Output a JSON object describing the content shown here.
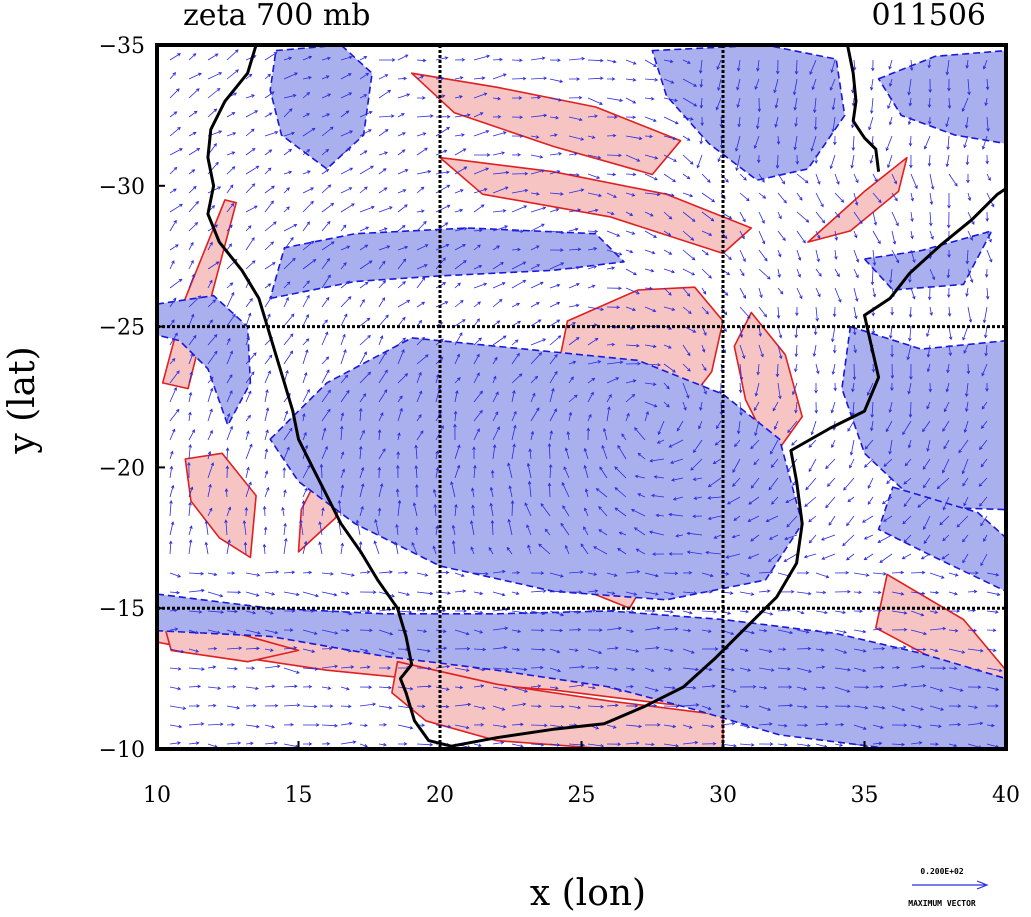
{
  "title_left": "zeta 700 mb",
  "title_right": "011506",
  "x_axis_label": "x (lon)",
  "y_axis_label": "y (lat)",
  "x_ticks": [
    "10",
    "15",
    "20",
    "25",
    "30",
    "35",
    "40"
  ],
  "y_ticks": [
    "-35",
    "-30",
    "-25",
    "-20",
    "-15",
    "-10"
  ],
  "max_vector": {
    "value_label": "0.200E+02",
    "caption": "MAXIMUM VECTOR"
  },
  "colors": {
    "positive_fill": "#f7c4c4",
    "positive_contour": "#e02020",
    "negative_fill": "#aab0ee",
    "negative_contour": "#1818dd",
    "vector": "#2a2ae0",
    "coastline": "#000000",
    "grid": "#000000"
  },
  "chart_data": {
    "type": "heatmap",
    "variable": "zeta",
    "level": "700 mb",
    "xlim": [
      10,
      40
    ],
    "ylim": [
      -35,
      -10
    ],
    "grid_lines_x": [
      20,
      30
    ],
    "grid_lines_y": [
      -25,
      -15
    ],
    "coastline": [
      [
        13.5,
        -35
      ],
      [
        13.2,
        -34
      ],
      [
        12.4,
        -33
      ],
      [
        11.9,
        -32
      ],
      [
        11.8,
        -31
      ],
      [
        12.0,
        -30
      ],
      [
        11.8,
        -29
      ],
      [
        12.2,
        -28
      ],
      [
        13.0,
        -27
      ],
      [
        13.6,
        -26
      ],
      [
        13.9,
        -25
      ],
      [
        14.2,
        -24
      ],
      [
        14.5,
        -23
      ],
      [
        14.8,
        -22
      ],
      [
        15.0,
        -21
      ],
      [
        15.5,
        -20
      ],
      [
        16.0,
        -19
      ],
      [
        16.5,
        -18
      ],
      [
        17.2,
        -17
      ],
      [
        17.8,
        -16
      ],
      [
        18.5,
        -15
      ],
      [
        18.8,
        -14
      ],
      [
        19.0,
        -13
      ],
      [
        18.6,
        -12.5
      ],
      [
        18.8,
        -12
      ],
      [
        19.1,
        -11
      ],
      [
        19.6,
        -10.3
      ],
      [
        20.4,
        -10.1
      ],
      [
        22.0,
        -10.4
      ],
      [
        24.0,
        -10.7
      ],
      [
        25.8,
        -10.9
      ],
      [
        27.2,
        -11.5
      ],
      [
        28.6,
        -12.2
      ],
      [
        29.7,
        -13.2
      ],
      [
        30.8,
        -14.3
      ],
      [
        31.9,
        -15.4
      ],
      [
        32.6,
        -16.6
      ],
      [
        32.8,
        -18.0
      ],
      [
        32.6,
        -19.5
      ],
      [
        32.4,
        -20.6
      ],
      [
        33.8,
        -21.4
      ],
      [
        35.0,
        -22.0
      ],
      [
        35.5,
        -23.2
      ],
      [
        35.2,
        -24.5
      ],
      [
        35.0,
        -25.4
      ],
      [
        35.9,
        -26.0
      ],
      [
        36.6,
        -26.9
      ],
      [
        37.7,
        -27.9
      ],
      [
        38.8,
        -28.8
      ],
      [
        39.7,
        -29.7
      ],
      [
        40.0,
        -29.9
      ]
    ],
    "lake_shore": [
      [
        34.4,
        -35
      ],
      [
        34.6,
        -34
      ],
      [
        34.7,
        -33
      ],
      [
        34.6,
        -32.3
      ],
      [
        35.0,
        -31.7
      ],
      [
        35.4,
        -31.3
      ],
      [
        35.5,
        -30.5
      ]
    ],
    "vorticity_regions": [
      {
        "sign": "positive",
        "points": [
          [
            10,
            -15
          ],
          [
            14,
            -14.3
          ],
          [
            18,
            -13.7
          ],
          [
            22,
            -13.4
          ],
          [
            26,
            -13
          ],
          [
            30,
            -12.7
          ],
          [
            34,
            -12.3
          ],
          [
            38,
            -11.2
          ],
          [
            40,
            -10.8
          ],
          [
            40,
            -10.3
          ],
          [
            37,
            -10.6
          ],
          [
            33,
            -11.2
          ],
          [
            28,
            -11.6
          ],
          [
            24,
            -12.1
          ],
          [
            20,
            -12.4
          ],
          [
            16,
            -12.8
          ],
          [
            12,
            -13.4
          ],
          [
            10,
            -13.8
          ]
        ]
      },
      {
        "sign": "positive",
        "points": [
          [
            18.5,
            -13.1
          ],
          [
            22,
            -12.3
          ],
          [
            26,
            -11.7
          ],
          [
            30,
            -11.2
          ],
          [
            30,
            -10
          ],
          [
            26,
            -10
          ],
          [
            22,
            -10.3
          ],
          [
            19.5,
            -11
          ],
          [
            18.3,
            -12
          ]
        ]
      },
      {
        "sign": "positive",
        "points": [
          [
            10.2,
            -23
          ],
          [
            11,
            -26
          ],
          [
            12.4,
            -29.5
          ],
          [
            12.8,
            -29.4
          ],
          [
            11.9,
            -26
          ],
          [
            11.1,
            -22.8
          ]
        ]
      },
      {
        "sign": "positive",
        "points": [
          [
            11,
            -20.3
          ],
          [
            12.3,
            -20.5
          ],
          [
            13.5,
            -19
          ],
          [
            13.3,
            -16.8
          ],
          [
            12.2,
            -17.5
          ],
          [
            11.2,
            -18.8
          ]
        ]
      },
      {
        "sign": "positive",
        "points": [
          [
            19,
            -34
          ],
          [
            22,
            -33.5
          ],
          [
            25.5,
            -32.8
          ],
          [
            28.5,
            -31.6
          ],
          [
            27.5,
            -30.4
          ],
          [
            24,
            -31.4
          ],
          [
            20.5,
            -32.6
          ]
        ]
      },
      {
        "sign": "positive",
        "points": [
          [
            20,
            -31
          ],
          [
            24,
            -30.5
          ],
          [
            28,
            -29.7
          ],
          [
            31,
            -28.5
          ],
          [
            30,
            -27.6
          ],
          [
            26,
            -28.9
          ],
          [
            21.5,
            -29.7
          ]
        ]
      },
      {
        "sign": "positive",
        "points": [
          [
            24.5,
            -25.2
          ],
          [
            27,
            -26.3
          ],
          [
            29,
            -26.4
          ],
          [
            30,
            -25.2
          ],
          [
            29.6,
            -23.4
          ],
          [
            28.3,
            -21.7
          ],
          [
            27.8,
            -19.7
          ],
          [
            26.6,
            -20.3
          ],
          [
            25.3,
            -22.3
          ],
          [
            24.2,
            -23.7
          ]
        ]
      },
      {
        "sign": "positive",
        "points": [
          [
            31,
            -25.5
          ],
          [
            32.2,
            -24
          ],
          [
            32.8,
            -21.8
          ],
          [
            31.8,
            -20.4
          ],
          [
            30.8,
            -22.4
          ],
          [
            30.4,
            -24.3
          ]
        ]
      },
      {
        "sign": "positive",
        "points": [
          [
            24.5,
            -17.5
          ],
          [
            26,
            -17.2
          ],
          [
            27.4,
            -16.2
          ],
          [
            26.7,
            -15
          ],
          [
            25.2,
            -15.6
          ]
        ]
      },
      {
        "sign": "positive",
        "points": [
          [
            35.8,
            -16.2
          ],
          [
            38.5,
            -14.6
          ],
          [
            40,
            -12.8
          ],
          [
            40,
            -11.8
          ],
          [
            38,
            -12.9
          ],
          [
            35.4,
            -14.3
          ]
        ]
      },
      {
        "sign": "positive",
        "points": [
          [
            15,
            -17
          ],
          [
            16.3,
            -18.2
          ],
          [
            17,
            -20
          ],
          [
            16,
            -20.3
          ],
          [
            15.1,
            -18.5
          ]
        ]
      },
      {
        "sign": "positive",
        "points": [
          [
            21.5,
            -18
          ],
          [
            22.5,
            -19.5
          ],
          [
            22.8,
            -21.5
          ],
          [
            21.8,
            -20.8
          ],
          [
            21.2,
            -19
          ]
        ]
      },
      {
        "sign": "positive",
        "points": [
          [
            33,
            -28
          ],
          [
            35,
            -29.8
          ],
          [
            36.5,
            -31
          ],
          [
            36.2,
            -29.8
          ],
          [
            34.5,
            -28.4
          ]
        ]
      },
      {
        "sign": "positive",
        "points": [
          [
            10.2,
            -14.6
          ],
          [
            12.5,
            -14.2
          ],
          [
            15,
            -13.5
          ],
          [
            13.2,
            -13.1
          ],
          [
            10.5,
            -13.5
          ]
        ]
      },
      {
        "sign": "negative",
        "points": [
          [
            10,
            -15.5
          ],
          [
            14,
            -15
          ],
          [
            18,
            -14.8
          ],
          [
            22,
            -14.8
          ],
          [
            26,
            -14.9
          ],
          [
            30,
            -14.6
          ],
          [
            34,
            -14.1
          ],
          [
            37,
            -13.4
          ],
          [
            40,
            -12.5
          ],
          [
            40,
            -10
          ],
          [
            36,
            -10
          ],
          [
            32,
            -10.5
          ],
          [
            29,
            -11.4
          ],
          [
            26,
            -12.2
          ],
          [
            22,
            -12.8
          ],
          [
            18,
            -13.3
          ],
          [
            14,
            -14
          ],
          [
            10,
            -14.2
          ]
        ]
      },
      {
        "sign": "negative",
        "points": [
          [
            14,
            -21
          ],
          [
            16,
            -23
          ],
          [
            19,
            -24.6
          ],
          [
            23,
            -24.2
          ],
          [
            27,
            -23.8
          ],
          [
            30,
            -22.6
          ],
          [
            32,
            -21
          ],
          [
            32.8,
            -18
          ],
          [
            31.5,
            -16
          ],
          [
            28,
            -15.3
          ],
          [
            24,
            -15.6
          ],
          [
            20,
            -16.5
          ],
          [
            17,
            -18
          ],
          [
            15,
            -19.5
          ]
        ]
      },
      {
        "sign": "negative",
        "points": [
          [
            34.5,
            -25
          ],
          [
            37,
            -24.2
          ],
          [
            40,
            -24.5
          ],
          [
            40,
            -18.5
          ],
          [
            37,
            -18.6
          ],
          [
            35,
            -20.5
          ],
          [
            34.2,
            -22.8
          ]
        ]
      },
      {
        "sign": "negative",
        "points": [
          [
            14,
            -26
          ],
          [
            17,
            -26.6
          ],
          [
            20,
            -26.8
          ],
          [
            24,
            -27
          ],
          [
            26.5,
            -27.3
          ],
          [
            25.5,
            -28.3
          ],
          [
            21,
            -28.5
          ],
          [
            17,
            -28.3
          ],
          [
            14.5,
            -27.8
          ]
        ]
      },
      {
        "sign": "negative",
        "points": [
          [
            27.5,
            -34.8
          ],
          [
            31.5,
            -35
          ],
          [
            34,
            -34.5
          ],
          [
            34.3,
            -32.5
          ],
          [
            33,
            -30.6
          ],
          [
            31.2,
            -30.2
          ],
          [
            29.5,
            -31.5
          ],
          [
            28,
            -33.2
          ]
        ]
      },
      {
        "sign": "negative",
        "points": [
          [
            14.2,
            -34.8
          ],
          [
            16.5,
            -35
          ],
          [
            17.6,
            -34
          ],
          [
            17.3,
            -31.8
          ],
          [
            16,
            -30.6
          ],
          [
            14.4,
            -31.8
          ],
          [
            14,
            -33.4
          ]
        ]
      },
      {
        "sign": "negative",
        "points": [
          [
            10,
            -25.8
          ],
          [
            12,
            -26.1
          ],
          [
            13.2,
            -25
          ],
          [
            13.3,
            -23
          ],
          [
            12.5,
            -21.5
          ],
          [
            11.8,
            -23.5
          ],
          [
            10.8,
            -24.5
          ],
          [
            10,
            -24.7
          ]
        ]
      },
      {
        "sign": "negative",
        "points": [
          [
            35.5,
            -33.8
          ],
          [
            37.5,
            -34.6
          ],
          [
            40,
            -34.8
          ],
          [
            40,
            -31.5
          ],
          [
            38.2,
            -31.8
          ],
          [
            36.3,
            -32.5
          ]
        ]
      },
      {
        "sign": "negative",
        "points": [
          [
            35,
            -27.4
          ],
          [
            37,
            -27.7
          ],
          [
            39.5,
            -28.4
          ],
          [
            38.5,
            -26.5
          ],
          [
            36,
            -26.3
          ]
        ]
      },
      {
        "sign": "negative",
        "points": [
          [
            36,
            -19.3
          ],
          [
            39,
            -18.4
          ],
          [
            40,
            -17.5
          ],
          [
            40,
            -15.6
          ],
          [
            37.5,
            -16.8
          ],
          [
            35.5,
            -17.8
          ]
        ]
      }
    ],
    "wind_vectors_shown": true
  }
}
